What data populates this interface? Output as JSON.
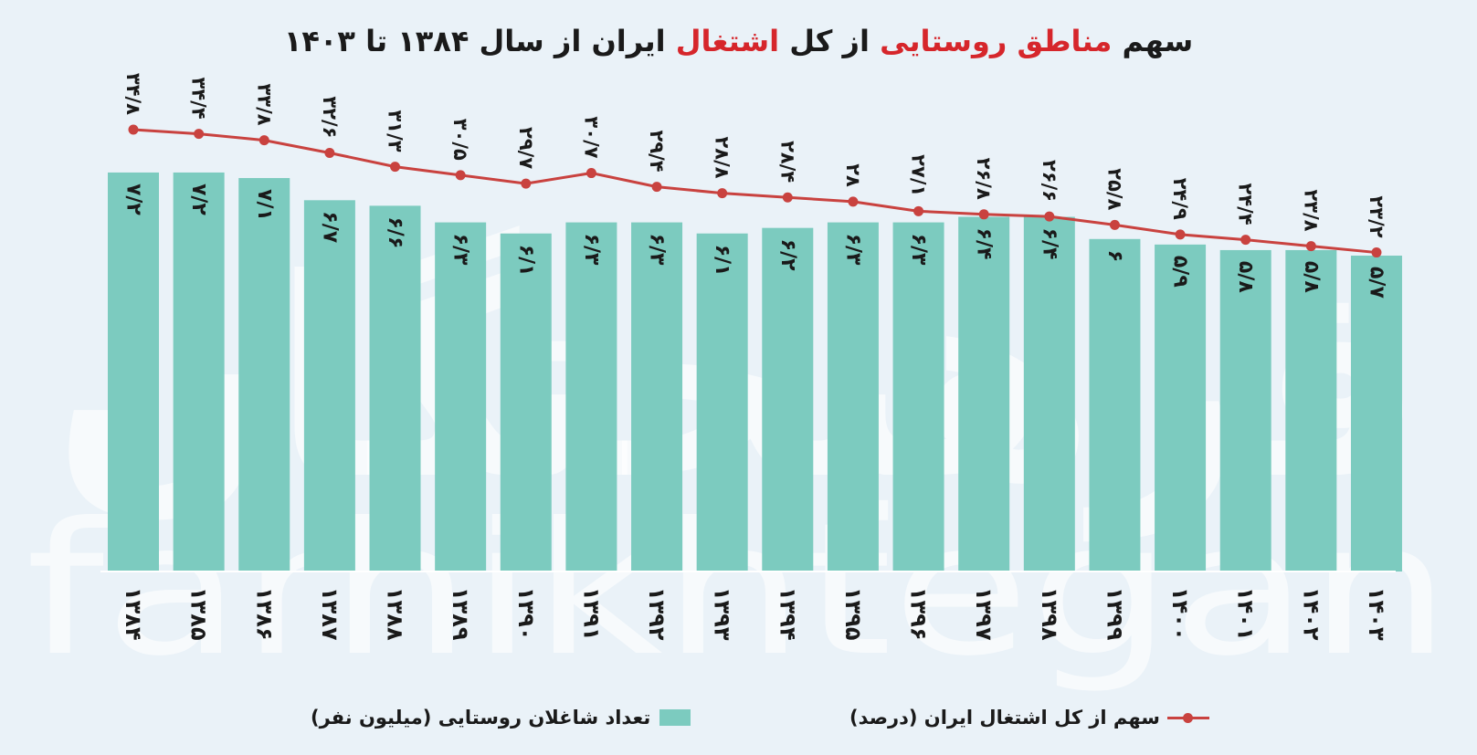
{
  "title": {
    "part1": "سهم ",
    "highlight1": "مناطق روستایی",
    "part2": " از کل ",
    "highlight2": "اشتغال",
    "part3": " ایران از سال ۱۳۸۴ تا ۱۴۰۳"
  },
  "watermark": {
    "fa": "فرهیختگان",
    "en": "farhikhtegan"
  },
  "legend": {
    "bar_label": "تعداد شاغلان روستایی (میلیون نفر)",
    "line_label": "سهم از کل اشتغال ایران  (درصد)"
  },
  "colors": {
    "bar": "#7ccbbf",
    "line": "#c9423f",
    "highlight": "#d6262b",
    "background": "#eaf2f8"
  },
  "chart_data": {
    "type": "bar",
    "categories": [
      "1384",
      "1385",
      "1386",
      "1387",
      "1388",
      "1389",
      "1390",
      "1391",
      "1392",
      "1393",
      "1394",
      "1395",
      "1396",
      "1397",
      "1398",
      "1399",
      "1400",
      "1401",
      "1402",
      "1403"
    ],
    "category_labels": [
      "۱۳۸۴",
      "۱۳۸۵",
      "۱۳۸۶",
      "۱۳۸۷",
      "۱۳۸۸",
      "۱۳۸۹",
      "۱۳۹۰",
      "۱۳۹۱",
      "۱۳۹۲",
      "۱۳۹۳",
      "۱۳۹۴",
      "۱۳۹۵",
      "۱۳۹۶",
      "۱۳۹۷",
      "۱۳۹۸",
      "۱۳۹۹",
      "۱۴۰۰",
      "۱۴۰۱",
      "۱۴۰۲",
      "۱۴۰۳"
    ],
    "series": [
      {
        "name": "تعداد شاغلان روستایی (میلیون نفر)",
        "type": "bar",
        "values": [
          7.2,
          7.2,
          7.1,
          6.7,
          6.6,
          6.3,
          6.1,
          6.3,
          6.3,
          6.1,
          6.2,
          6.3,
          6.3,
          6.4,
          6.4,
          6,
          5.9,
          5.8,
          5.8,
          5.7
        ],
        "labels": [
          "۷/۲",
          "۷/۲",
          "۷/۱",
          "۶/۷",
          "۶/۶",
          "۶/۳",
          "۶/۱",
          "۶/۳",
          "۶/۳",
          "۶/۱",
          "۶/۲",
          "۶/۳",
          "۶/۳",
          "۶/۴",
          "۶/۴",
          "۶",
          "۵/۹",
          "۵/۸",
          "۵/۸",
          "۵/۷"
        ]
      },
      {
        "name": "سهم از کل اشتغال ایران  (درصد)",
        "type": "line",
        "values": [
          34.8,
          34.4,
          33.8,
          32.6,
          31.3,
          30.5,
          29.7,
          30.7,
          29.4,
          28.8,
          28.4,
          28,
          27.1,
          26.8,
          26.6,
          25.8,
          24.9,
          24.4,
          23.8,
          23.2
        ],
        "labels": [
          "۳۴/۸",
          "۳۴/۴",
          "۳۳/۸",
          "۳۲/۶",
          "۳۱/۳",
          "۳۰/۵",
          "۲۹/۷",
          "۳۰/۷",
          "۲۹/۴",
          "۲۸/۸",
          "۲۸/۴",
          "۲۸",
          "۲۷/۱",
          "۲۶/۸",
          "۲۶/۶",
          "۲۵/۸",
          "۲۴/۹",
          "۲۴/۴",
          "۲۳/۸",
          "۲۳/۲"
        ]
      }
    ]
  }
}
